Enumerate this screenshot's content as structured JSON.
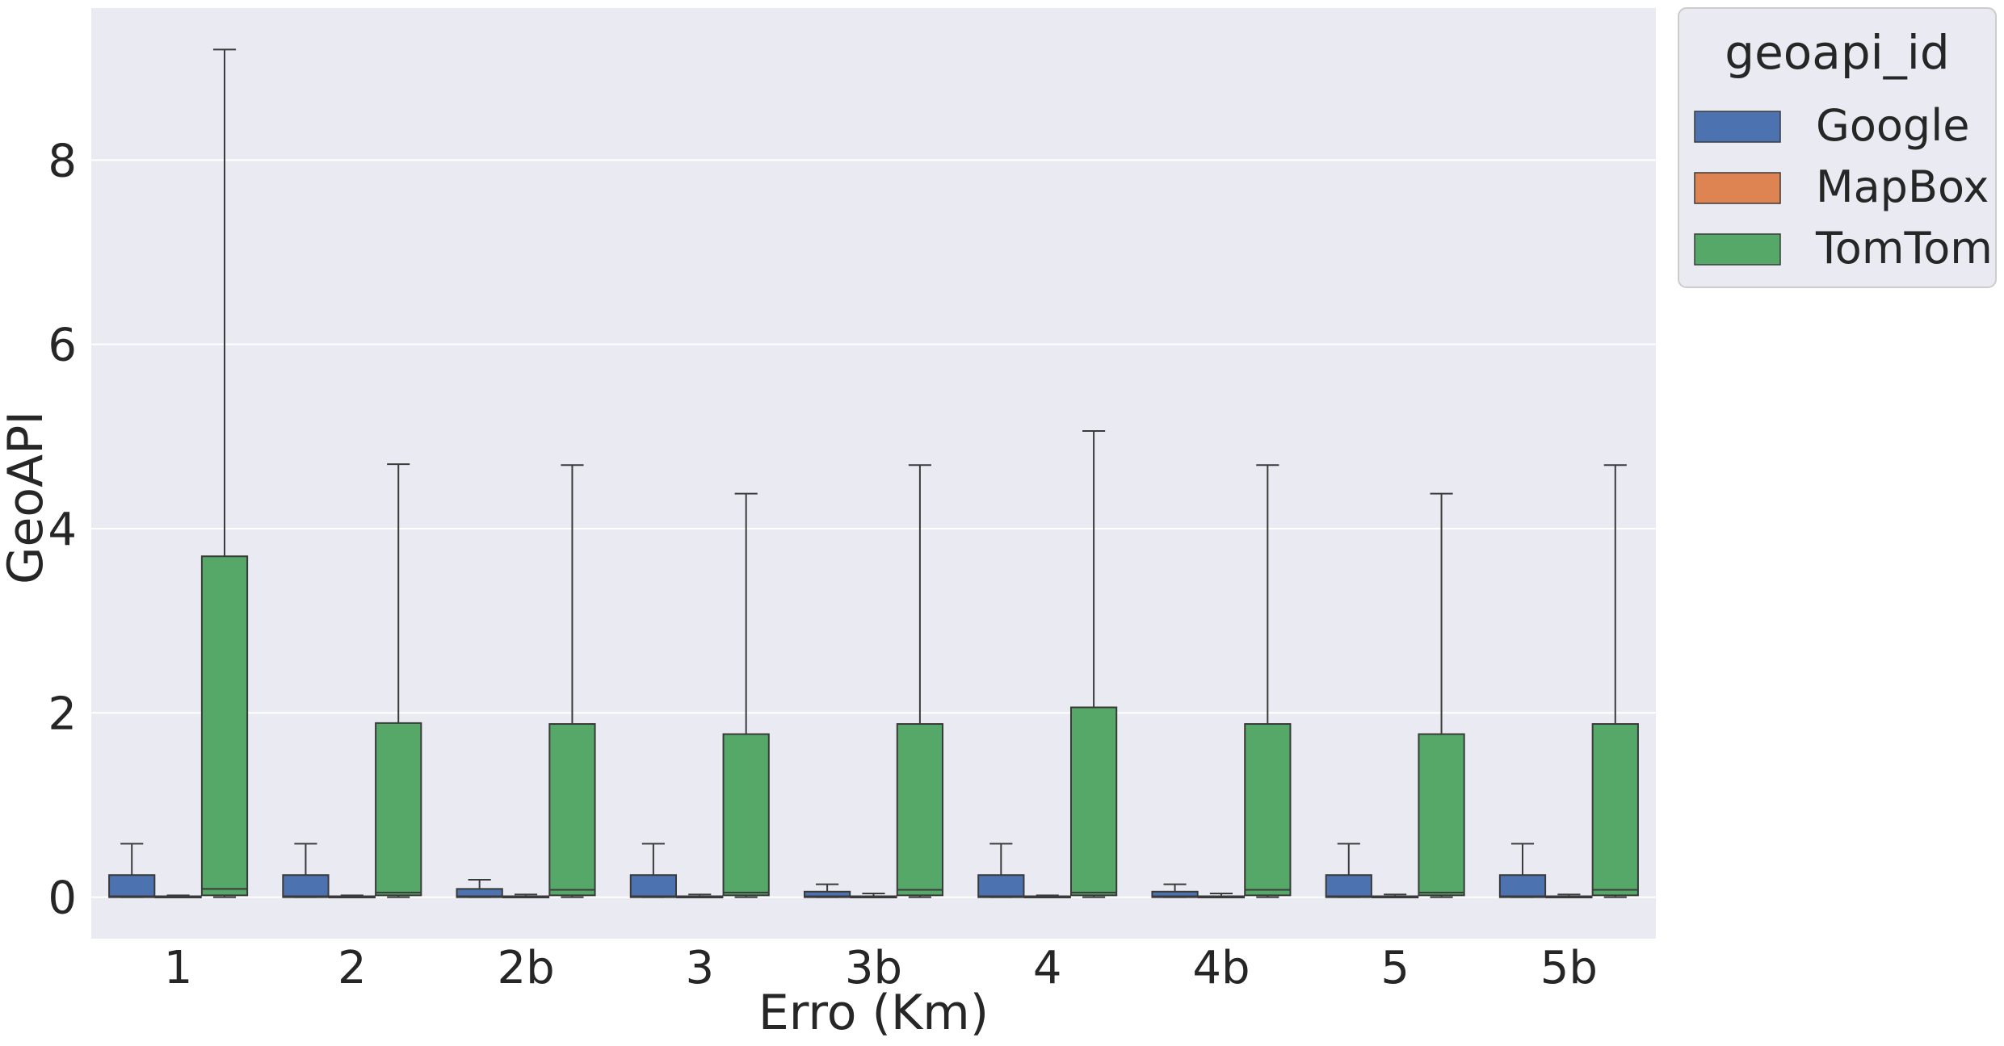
{
  "colors": {
    "plot_bg": "#eaeaf2",
    "grid": "#ffffff",
    "Google": "#4c72b0",
    "MapBox": "#dd8452",
    "TomTom": "#55a868",
    "line": "#3a3a3a",
    "legend_border": "#cccccc"
  },
  "chart_data": {
    "type": "box",
    "xlabel": "Erro (Km)",
    "ylabel": "GeoAPI",
    "ylim": [
      -0.45,
      9.65
    ],
    "yticks": [
      0,
      2,
      4,
      6,
      8
    ],
    "grid": true,
    "legend": {
      "title": "geoapi_id",
      "placement": "outside-right-top"
    },
    "categories": [
      "1",
      "2",
      "2b",
      "3",
      "3b",
      "4",
      "4b",
      "5",
      "5b"
    ],
    "series": [
      {
        "name": "Google",
        "boxes": [
          {
            "whisker_low": 0.0,
            "q1": 0.0,
            "median": 0.01,
            "q3": 0.24,
            "whisker_high": 0.58
          },
          {
            "whisker_low": 0.0,
            "q1": 0.0,
            "median": 0.01,
            "q3": 0.24,
            "whisker_high": 0.58
          },
          {
            "whisker_low": 0.0,
            "q1": 0.0,
            "median": 0.01,
            "q3": 0.09,
            "whisker_high": 0.19
          },
          {
            "whisker_low": 0.0,
            "q1": 0.0,
            "median": 0.01,
            "q3": 0.24,
            "whisker_high": 0.58
          },
          {
            "whisker_low": 0.0,
            "q1": 0.0,
            "median": 0.01,
            "q3": 0.06,
            "whisker_high": 0.14
          },
          {
            "whisker_low": 0.0,
            "q1": 0.0,
            "median": 0.01,
            "q3": 0.24,
            "whisker_high": 0.58
          },
          {
            "whisker_low": 0.0,
            "q1": 0.0,
            "median": 0.01,
            "q3": 0.06,
            "whisker_high": 0.14
          },
          {
            "whisker_low": 0.0,
            "q1": 0.0,
            "median": 0.01,
            "q3": 0.24,
            "whisker_high": 0.58
          },
          {
            "whisker_low": 0.0,
            "q1": 0.0,
            "median": 0.01,
            "q3": 0.24,
            "whisker_high": 0.58
          }
        ]
      },
      {
        "name": "MapBox",
        "boxes": [
          {
            "whisker_low": 0.0,
            "q1": 0.0,
            "median": 0.0,
            "q3": 0.01,
            "whisker_high": 0.02
          },
          {
            "whisker_low": 0.0,
            "q1": 0.0,
            "median": 0.0,
            "q3": 0.01,
            "whisker_high": 0.02
          },
          {
            "whisker_low": 0.0,
            "q1": 0.0,
            "median": 0.0,
            "q3": 0.01,
            "whisker_high": 0.03
          },
          {
            "whisker_low": 0.0,
            "q1": 0.0,
            "median": 0.0,
            "q3": 0.01,
            "whisker_high": 0.03
          },
          {
            "whisker_low": 0.0,
            "q1": 0.0,
            "median": 0.0,
            "q3": 0.01,
            "whisker_high": 0.04
          },
          {
            "whisker_low": 0.0,
            "q1": 0.0,
            "median": 0.0,
            "q3": 0.01,
            "whisker_high": 0.02
          },
          {
            "whisker_low": 0.0,
            "q1": 0.0,
            "median": 0.0,
            "q3": 0.01,
            "whisker_high": 0.04
          },
          {
            "whisker_low": 0.0,
            "q1": 0.0,
            "median": 0.0,
            "q3": 0.01,
            "whisker_high": 0.03
          },
          {
            "whisker_low": 0.0,
            "q1": 0.0,
            "median": 0.0,
            "q3": 0.01,
            "whisker_high": 0.03
          }
        ]
      },
      {
        "name": "TomTom",
        "boxes": [
          {
            "whisker_low": 0.0,
            "q1": 0.02,
            "median": 0.09,
            "q3": 3.7,
            "whisker_high": 9.2
          },
          {
            "whisker_low": 0.0,
            "q1": 0.02,
            "median": 0.05,
            "q3": 1.89,
            "whisker_high": 4.7
          },
          {
            "whisker_low": 0.0,
            "q1": 0.02,
            "median": 0.08,
            "q3": 1.88,
            "whisker_high": 4.69
          },
          {
            "whisker_low": 0.0,
            "q1": 0.02,
            "median": 0.05,
            "q3": 1.77,
            "whisker_high": 4.38
          },
          {
            "whisker_low": 0.0,
            "q1": 0.02,
            "median": 0.08,
            "q3": 1.88,
            "whisker_high": 4.69
          },
          {
            "whisker_low": 0.0,
            "q1": 0.02,
            "median": 0.05,
            "q3": 2.06,
            "whisker_high": 5.06
          },
          {
            "whisker_low": 0.0,
            "q1": 0.02,
            "median": 0.08,
            "q3": 1.88,
            "whisker_high": 4.69
          },
          {
            "whisker_low": 0.0,
            "q1": 0.02,
            "median": 0.05,
            "q3": 1.77,
            "whisker_high": 4.38
          },
          {
            "whisker_low": 0.0,
            "q1": 0.02,
            "median": 0.08,
            "q3": 1.88,
            "whisker_high": 4.69
          }
        ]
      }
    ]
  }
}
